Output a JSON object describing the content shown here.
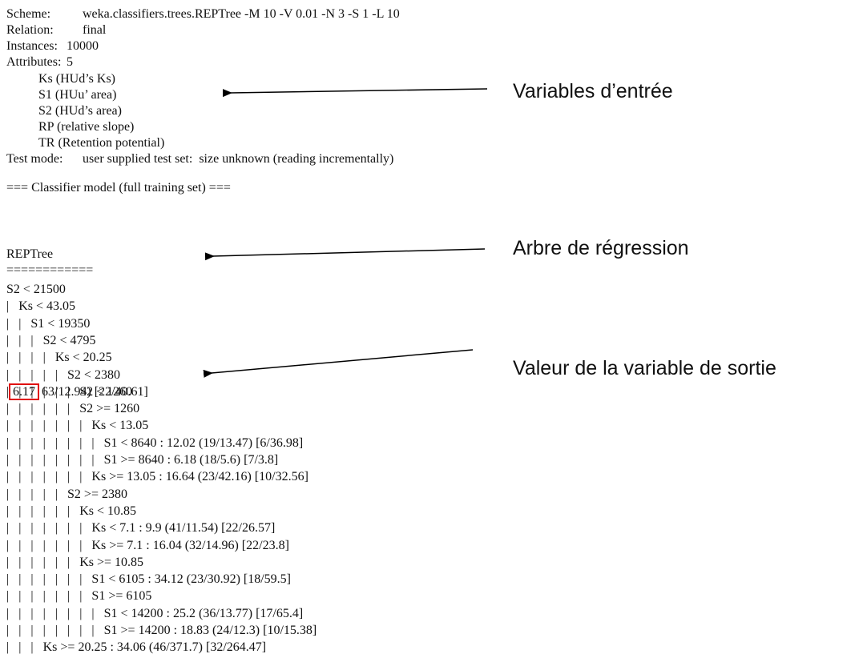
{
  "header": {
    "scheme": {
      "label": "Scheme:",
      "value": "weka.classifiers.trees.REPTree -M 10 -V 0.01 -N 3 -S 1 -L 10"
    },
    "relation": {
      "label": "Relation:",
      "value": "final"
    },
    "instances": {
      "label": "Instances:",
      "value": "10000"
    },
    "attributes": {
      "label": "Attributes:",
      "value": "5"
    }
  },
  "attribute_list": [
    "Ks (HUd’s Ks)",
    "S1 (HUu’ area)",
    "S2 (HUd’s area)",
    "RP (relative slope)",
    "TR (Retention potential)"
  ],
  "test_mode": {
    "label": "Test mode:",
    "value": "user supplied test set:  size unknown (reading incrementally)"
  },
  "classifier_heading": "=== Classifier model (full training set) ===",
  "model_name": "REPTree",
  "model_underline": "============",
  "tree": [
    "S2 < 21500",
    "|   Ks < 43.05",
    "|   |   S1 < 19350",
    "|   |   |   S2 < 4795",
    "|   |   |   |   Ks < 20.25",
    "|   |   |   |   |   S2 < 2380",
    {
      "before": "|   |   |   |   |   |   S2 < 1260",
      "value": "6.17",
      "after": "63/12.94) [22/40.61]"
    },
    "|   |   |   |   |   |   S2 >= 1260",
    "|   |   |   |   |   |   |   Ks < 13.05",
    "|   |   |   |   |   |   |   |   S1 < 8640 : 12.02 (19/13.47) [6/36.98]",
    "|   |   |   |   |   |   |   |   S1 >= 8640 : 6.18 (18/5.6) [7/3.8]",
    "|   |   |   |   |   |   |   Ks >= 13.05 : 16.64 (23/42.16) [10/32.56]",
    "|   |   |   |   |   S2 >= 2380",
    "|   |   |   |   |   |   Ks < 10.85",
    "|   |   |   |   |   |   |   Ks < 7.1 : 9.9 (41/11.54) [22/26.57]",
    "|   |   |   |   |   |   |   Ks >= 7.1 : 16.04 (32/14.96) [22/23.8]",
    "|   |   |   |   |   |   Ks >= 10.85",
    "|   |   |   |   |   |   |   S1 < 6105 : 34.12 (23/30.92) [18/59.5]",
    "|   |   |   |   |   |   |   S1 >= 6105",
    "|   |   |   |   |   |   |   |   S1 < 14200 : 25.2 (36/13.77) [17/65.4]",
    "|   |   |   |   |   |   |   |   S1 >= 14200 : 18.83 (24/12.3) [10/15.38]",
    "|   |   |   Ks >= 20.25 : 34.06 (46/371.7) [32/264.47]"
  ],
  "annotations": [
    "Variables d’entrée",
    "Arbre de régression",
    "Valeur de la variable de sortie"
  ]
}
